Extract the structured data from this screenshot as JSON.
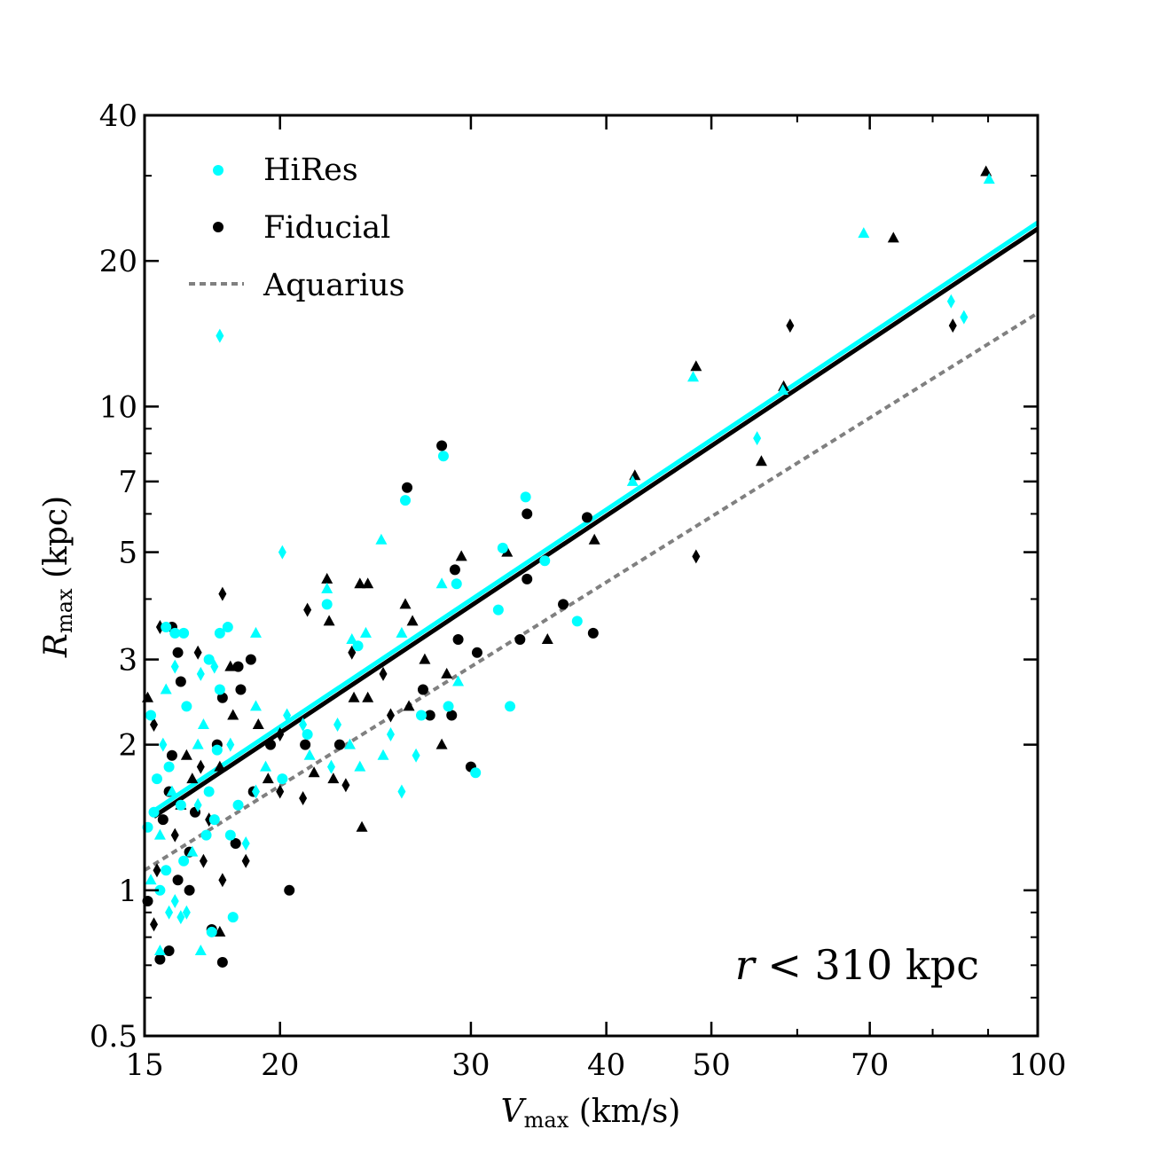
{
  "chart_data": {
    "type": "scatter",
    "title": "",
    "xlabel": "V",
    "xlabel_sub": "max",
    "xlabel_unit": " (km/s)",
    "ylabel": "R",
    "ylabel_sub": "max",
    "ylabel_unit": " (kpc)",
    "xscale": "log",
    "yscale": "log",
    "xlim": [
      15,
      100
    ],
    "ylim": [
      0.5,
      40
    ],
    "xticks": [
      15,
      20,
      30,
      40,
      50,
      70,
      100
    ],
    "xticklabels": [
      "15",
      "20",
      "30",
      "40",
      "50",
      "70",
      "100"
    ],
    "yticks": [
      0.5,
      1,
      2,
      3,
      5,
      7,
      10,
      20,
      40
    ],
    "yticklabels": [
      "0.5",
      "1",
      "2",
      "3",
      "5",
      "7",
      "10",
      "20",
      "40"
    ],
    "annotation": {
      "var": "r",
      "text": " < 310 kpc",
      "position": "bottom-right"
    },
    "legend": {
      "position": "top-left",
      "entries": [
        {
          "label": "HiRes",
          "color": "#00ffff",
          "marker": "circle"
        },
        {
          "label": "Fiducial",
          "color": "#000000",
          "marker": "circle"
        },
        {
          "label": "Aquarius",
          "color": "#808080",
          "marker": "dashed-line"
        }
      ]
    },
    "lines": [
      {
        "name": "Aquarius",
        "color": "#808080",
        "style": "dashed",
        "x": [
          15,
          100
        ],
        "y": [
          1.1,
          15.6
        ]
      },
      {
        "name": "Fiducial fit",
        "color": "#000000",
        "style": "solid",
        "x": [
          15.3,
          100
        ],
        "y": [
          1.42,
          23.3
        ]
      },
      {
        "name": "HiRes fit",
        "color": "#00ffff",
        "style": "solid",
        "x": [
          15.3,
          100
        ],
        "y": [
          1.46,
          24.0
        ]
      }
    ],
    "series": [
      {
        "name": "HiRes",
        "color": "#00ffff",
        "points": [
          [
            90.2,
            29.5,
            "t"
          ],
          [
            69.1,
            22.8,
            "t"
          ],
          [
            83.2,
            16.5,
            "d"
          ],
          [
            85.5,
            15.3,
            "d"
          ],
          [
            48.1,
            11.5,
            "t"
          ],
          [
            58.2,
            10.8,
            "t"
          ],
          [
            42.3,
            7.0,
            "t"
          ],
          [
            55.1,
            8.6,
            "d"
          ],
          [
            28.3,
            7.9,
            "c"
          ],
          [
            26.1,
            6.4,
            "c"
          ],
          [
            33.7,
            6.5,
            "c"
          ],
          [
            32.1,
            5.1,
            "c"
          ],
          [
            35.1,
            4.8,
            "c"
          ],
          [
            29.1,
            4.3,
            "c"
          ],
          [
            28.2,
            4.3,
            "t"
          ],
          [
            31.8,
            3.8,
            "c"
          ],
          [
            37.6,
            3.6,
            "c"
          ],
          [
            24.8,
            5.3,
            "t"
          ],
          [
            20.1,
            5.0,
            "d"
          ],
          [
            22.1,
            3.9,
            "c"
          ],
          [
            22.1,
            4.2,
            "t"
          ],
          [
            23.6,
            3.2,
            "c"
          ],
          [
            24.0,
            3.4,
            "t"
          ],
          [
            25.9,
            3.4,
            "t"
          ],
          [
            23.3,
            3.3,
            "t"
          ],
          [
            29.2,
            2.7,
            "t"
          ],
          [
            28.6,
            2.4,
            "c"
          ],
          [
            27.0,
            2.3,
            "c"
          ],
          [
            32.6,
            2.4,
            "c"
          ],
          [
            30.3,
            1.75,
            "c"
          ],
          [
            25.9,
            1.6,
            "d"
          ],
          [
            24.9,
            1.9,
            "t"
          ],
          [
            25.3,
            2.1,
            "d"
          ],
          [
            23.2,
            2.0,
            "t"
          ],
          [
            22.6,
            2.2,
            "d"
          ],
          [
            21.0,
            2.2,
            "d"
          ],
          [
            19.0,
            3.4,
            "t"
          ],
          [
            17.6,
            3.4,
            "c"
          ],
          [
            17.9,
            3.5,
            "c"
          ],
          [
            17.2,
            3.0,
            "c"
          ],
          [
            17.4,
            2.9,
            "d"
          ],
          [
            17.6,
            2.6,
            "c"
          ],
          [
            16.0,
            3.4,
            "c"
          ],
          [
            16.3,
            3.4,
            "c"
          ],
          [
            15.7,
            3.5,
            "c"
          ],
          [
            16.0,
            2.9,
            "d"
          ],
          [
            15.7,
            2.6,
            "t"
          ],
          [
            16.9,
            2.8,
            "d"
          ],
          [
            17.6,
            14.0,
            "d"
          ],
          [
            16.4,
            2.4,
            "c"
          ],
          [
            17.0,
            2.2,
            "t"
          ],
          [
            15.2,
            2.3,
            "c"
          ],
          [
            15.6,
            2.0,
            "d"
          ],
          [
            15.8,
            1.8,
            "c"
          ],
          [
            15.4,
            1.7,
            "c"
          ],
          [
            15.9,
            1.6,
            "t"
          ],
          [
            16.2,
            1.5,
            "c"
          ],
          [
            16.8,
            1.5,
            "d"
          ],
          [
            17.2,
            1.6,
            "c"
          ],
          [
            17.4,
            1.4,
            "c"
          ],
          [
            17.1,
            1.3,
            "c"
          ],
          [
            16.6,
            1.2,
            "t"
          ],
          [
            16.3,
            1.15,
            "c"
          ],
          [
            15.3,
            1.45,
            "c"
          ],
          [
            15.1,
            1.35,
            "c"
          ],
          [
            15.5,
            1.3,
            "t"
          ],
          [
            15.7,
            1.1,
            "c"
          ],
          [
            15.2,
            1.05,
            "t"
          ],
          [
            15.5,
            1.0,
            "c"
          ],
          [
            16.0,
            0.95,
            "d"
          ],
          [
            16.4,
            0.9,
            "d"
          ],
          [
            15.8,
            0.9,
            "d"
          ],
          [
            16.2,
            0.88,
            "d"
          ],
          [
            16.9,
            0.75,
            "t"
          ],
          [
            17.3,
            0.82,
            "c"
          ],
          [
            18.1,
            0.88,
            "c"
          ],
          [
            15.5,
            0.75,
            "t"
          ],
          [
            18.0,
            1.3,
            "c"
          ],
          [
            18.6,
            1.25,
            "d"
          ],
          [
            18.3,
            1.5,
            "c"
          ],
          [
            19.0,
            1.6,
            "d"
          ],
          [
            19.4,
            1.8,
            "t"
          ],
          [
            20.1,
            1.7,
            "c"
          ],
          [
            21.3,
            1.9,
            "t"
          ],
          [
            22.3,
            1.8,
            "d"
          ],
          [
            23.7,
            1.8,
            "t"
          ],
          [
            26.7,
            1.9,
            "d"
          ],
          [
            16.8,
            2.0,
            "t"
          ],
          [
            17.5,
            1.95,
            "c"
          ],
          [
            18.0,
            2.0,
            "d"
          ],
          [
            19.0,
            2.4,
            "t"
          ],
          [
            20.3,
            2.3,
            "d"
          ],
          [
            21.2,
            2.1,
            "c"
          ]
        ]
      },
      {
        "name": "Fiducial",
        "color": "#000000",
        "points": [
          [
            89.6,
            30.6,
            "t"
          ],
          [
            73.6,
            22.3,
            "t"
          ],
          [
            59.1,
            14.7,
            "d"
          ],
          [
            83.5,
            14.7,
            "d"
          ],
          [
            48.4,
            12.1,
            "t"
          ],
          [
            58.3,
            11.0,
            "t"
          ],
          [
            42.5,
            7.2,
            "t"
          ],
          [
            55.6,
            7.7,
            "t"
          ],
          [
            28.2,
            8.3,
            "c"
          ],
          [
            26.2,
            6.8,
            "c"
          ],
          [
            33.8,
            6.0,
            "c"
          ],
          [
            38.4,
            5.9,
            "c"
          ],
          [
            39.0,
            5.3,
            "t"
          ],
          [
            48.4,
            4.9,
            "d"
          ],
          [
            29.4,
            4.9,
            "t"
          ],
          [
            29.0,
            4.6,
            "c"
          ],
          [
            32.4,
            5.0,
            "t"
          ],
          [
            33.8,
            4.4,
            "c"
          ],
          [
            36.5,
            3.9,
            "c"
          ],
          [
            38.9,
            3.4,
            "c"
          ],
          [
            35.3,
            3.3,
            "t"
          ],
          [
            33.3,
            3.3,
            "c"
          ],
          [
            26.1,
            3.9,
            "t"
          ],
          [
            26.5,
            3.6,
            "t"
          ],
          [
            24.1,
            4.3,
            "t"
          ],
          [
            22.1,
            4.4,
            "t"
          ],
          [
            23.7,
            4.3,
            "t"
          ],
          [
            21.2,
            3.8,
            "d"
          ],
          [
            22.2,
            3.6,
            "t"
          ],
          [
            23.3,
            3.1,
            "d"
          ],
          [
            24.9,
            2.8,
            "d"
          ],
          [
            27.2,
            3.0,
            "t"
          ],
          [
            29.2,
            3.3,
            "c"
          ],
          [
            28.8,
            2.3,
            "c"
          ],
          [
            30.4,
            3.1,
            "c"
          ],
          [
            28.5,
            2.8,
            "t"
          ],
          [
            27.1,
            2.6,
            "c"
          ],
          [
            26.3,
            2.4,
            "t"
          ],
          [
            25.3,
            2.3,
            "d"
          ],
          [
            27.5,
            2.3,
            "c"
          ],
          [
            28.2,
            2.0,
            "t"
          ],
          [
            30.0,
            1.8,
            "c"
          ],
          [
            24.1,
            2.5,
            "t"
          ],
          [
            23.4,
            2.5,
            "t"
          ],
          [
            22.7,
            2.0,
            "c"
          ],
          [
            22.4,
            1.7,
            "t"
          ],
          [
            21.1,
            2.0,
            "c"
          ],
          [
            20.0,
            2.1,
            "d"
          ],
          [
            19.1,
            2.2,
            "t"
          ],
          [
            18.4,
            2.6,
            "c"
          ],
          [
            18.1,
            2.3,
            "t"
          ],
          [
            18.0,
            2.9,
            "t"
          ],
          [
            17.7,
            4.1,
            "d"
          ],
          [
            18.8,
            3.0,
            "c"
          ],
          [
            18.3,
            2.9,
            "c"
          ],
          [
            17.7,
            2.5,
            "c"
          ],
          [
            16.8,
            3.1,
            "d"
          ],
          [
            16.1,
            3.1,
            "c"
          ],
          [
            15.9,
            3.5,
            "c"
          ],
          [
            15.5,
            3.5,
            "d"
          ],
          [
            16.2,
            2.7,
            "c"
          ],
          [
            15.1,
            2.5,
            "t"
          ],
          [
            15.3,
            2.2,
            "d"
          ],
          [
            15.9,
            1.9,
            "c"
          ],
          [
            16.4,
            1.9,
            "t"
          ],
          [
            16.9,
            1.8,
            "d"
          ],
          [
            17.6,
            1.8,
            "t"
          ],
          [
            16.6,
            1.7,
            "t"
          ],
          [
            15.8,
            1.6,
            "c"
          ],
          [
            16.2,
            1.5,
            "t"
          ],
          [
            16.7,
            1.45,
            "c"
          ],
          [
            17.2,
            1.4,
            "d"
          ],
          [
            15.6,
            1.4,
            "c"
          ],
          [
            16.0,
            1.3,
            "d"
          ],
          [
            16.5,
            1.2,
            "c"
          ],
          [
            17.0,
            1.15,
            "d"
          ],
          [
            16.5,
            1.0,
            "c"
          ],
          [
            16.1,
            1.05,
            "c"
          ],
          [
            15.4,
            1.1,
            "d"
          ],
          [
            15.1,
            0.95,
            "c"
          ],
          [
            15.3,
            0.85,
            "d"
          ],
          [
            15.8,
            0.75,
            "c"
          ],
          [
            15.5,
            0.72,
            "c"
          ],
          [
            17.3,
            0.83,
            "c"
          ],
          [
            17.6,
            0.82,
            "t"
          ],
          [
            17.7,
            0.71,
            "c"
          ],
          [
            17.7,
            1.05,
            "d"
          ],
          [
            18.2,
            1.25,
            "c"
          ],
          [
            18.6,
            1.15,
            "d"
          ],
          [
            20.4,
            1.0,
            "c"
          ],
          [
            19.5,
            1.7,
            "t"
          ],
          [
            20.0,
            1.6,
            "d"
          ],
          [
            21.0,
            1.55,
            "d"
          ],
          [
            21.5,
            1.75,
            "t"
          ],
          [
            23.0,
            1.65,
            "d"
          ],
          [
            23.8,
            1.35,
            "t"
          ],
          [
            18.9,
            1.6,
            "c"
          ],
          [
            17.5,
            2.0,
            "c"
          ],
          [
            19.6,
            2.0,
            "c"
          ]
        ]
      }
    ]
  }
}
